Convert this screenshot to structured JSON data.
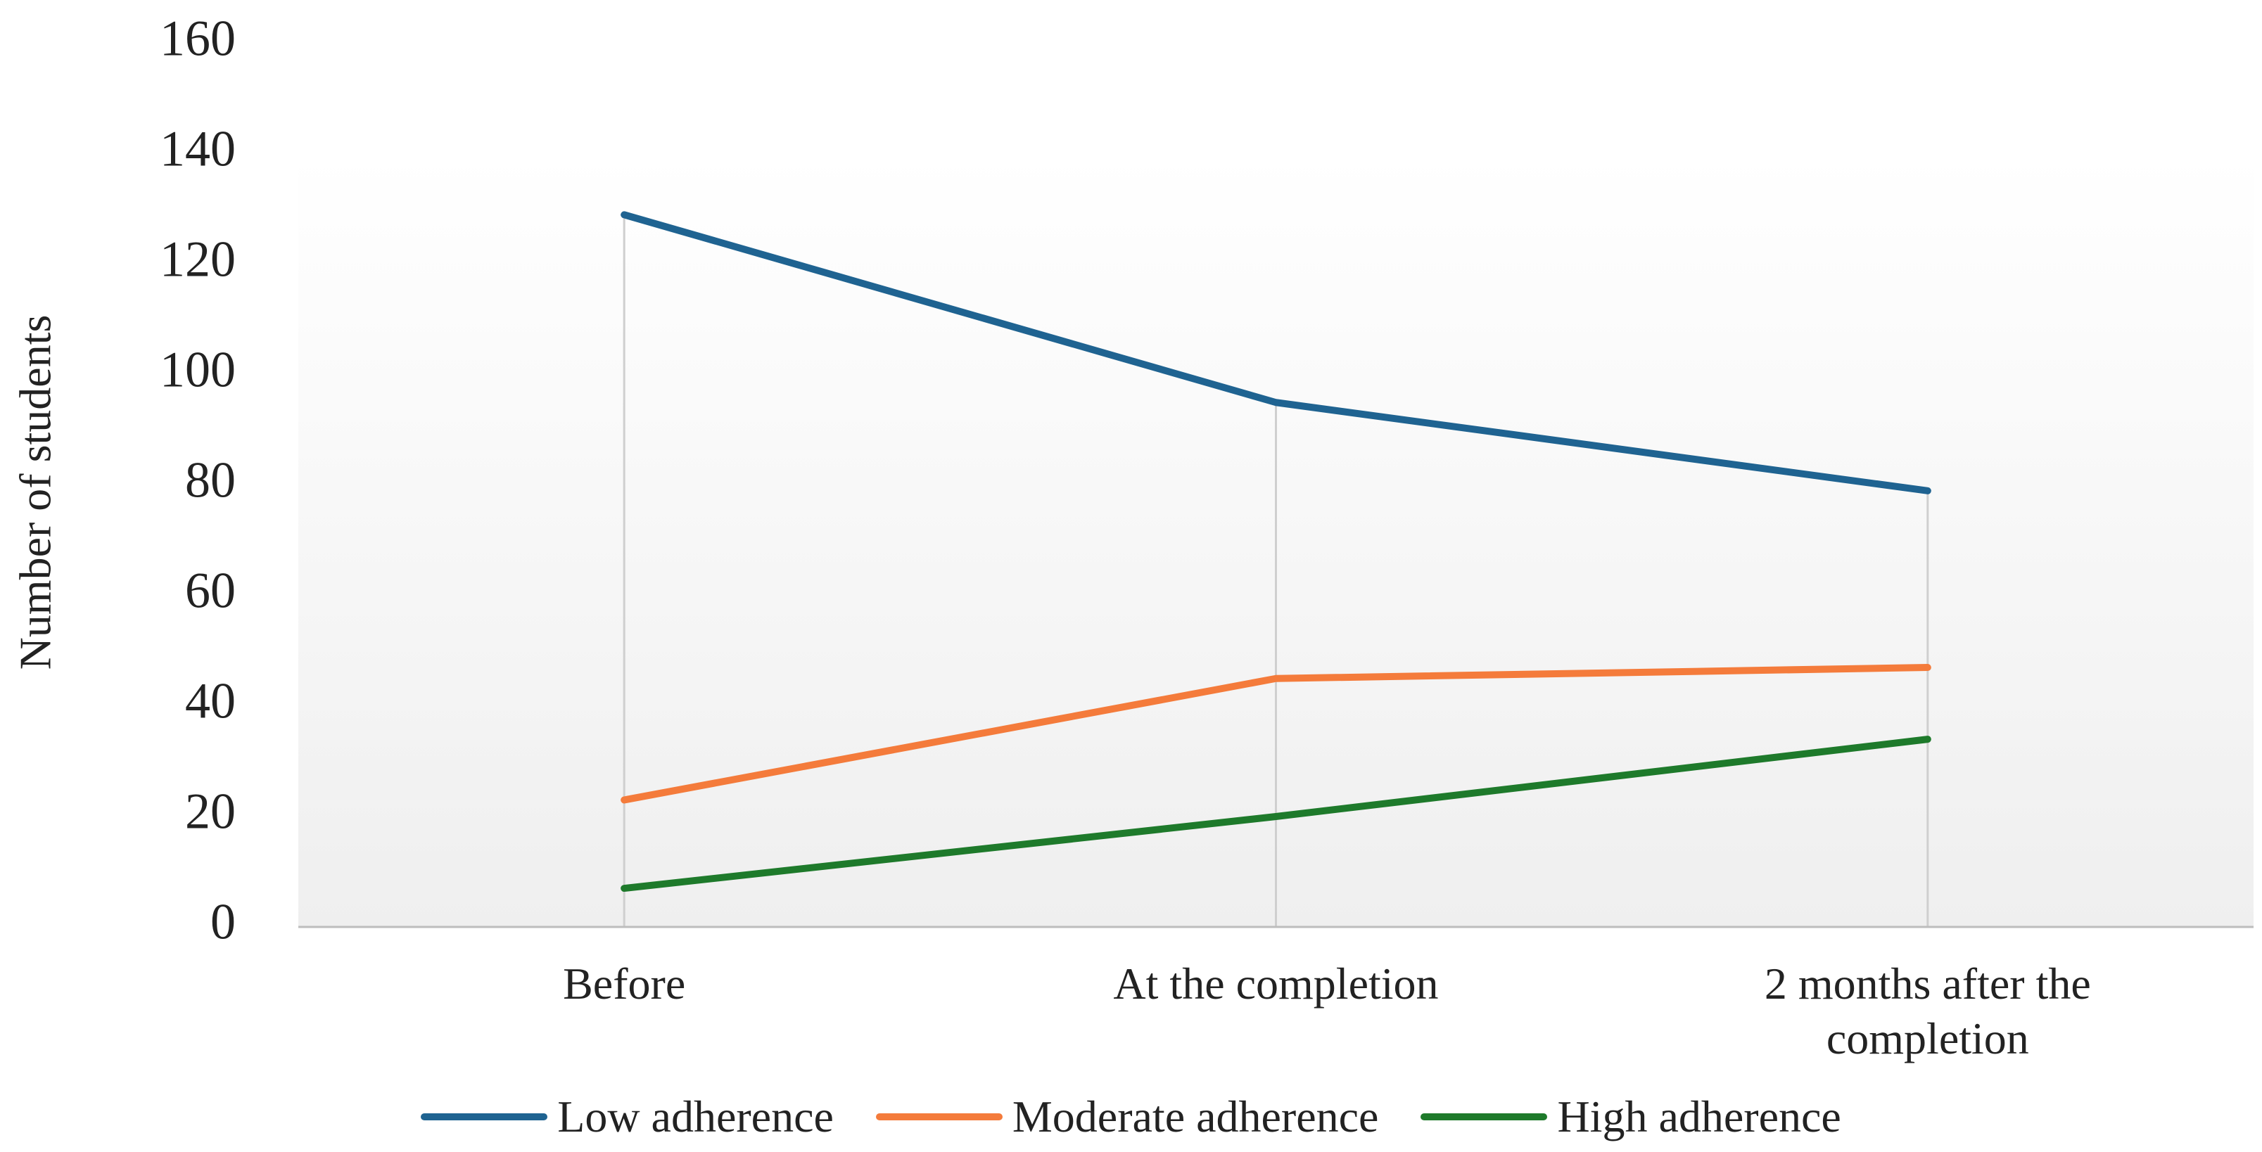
{
  "chart_data": {
    "type": "line",
    "y_label": "Number of students",
    "categories": [
      "Before",
      "At the completion",
      "2 months after the completion"
    ],
    "series": [
      {
        "name": "Low adherence",
        "color": "#1f6391",
        "values": [
          129,
          95,
          79
        ]
      },
      {
        "name": "Moderate adherence",
        "color": "#f47b3b",
        "values": [
          23,
          45,
          47
        ]
      },
      {
        "name": "High adherence",
        "color": "#1e7a2b",
        "values": [
          7,
          20,
          34
        ]
      }
    ],
    "ylim": [
      0,
      160
    ],
    "yticks": [
      0,
      20,
      40,
      60,
      80,
      100,
      120,
      140,
      160
    ],
    "grid": false,
    "legend": "bottom"
  }
}
